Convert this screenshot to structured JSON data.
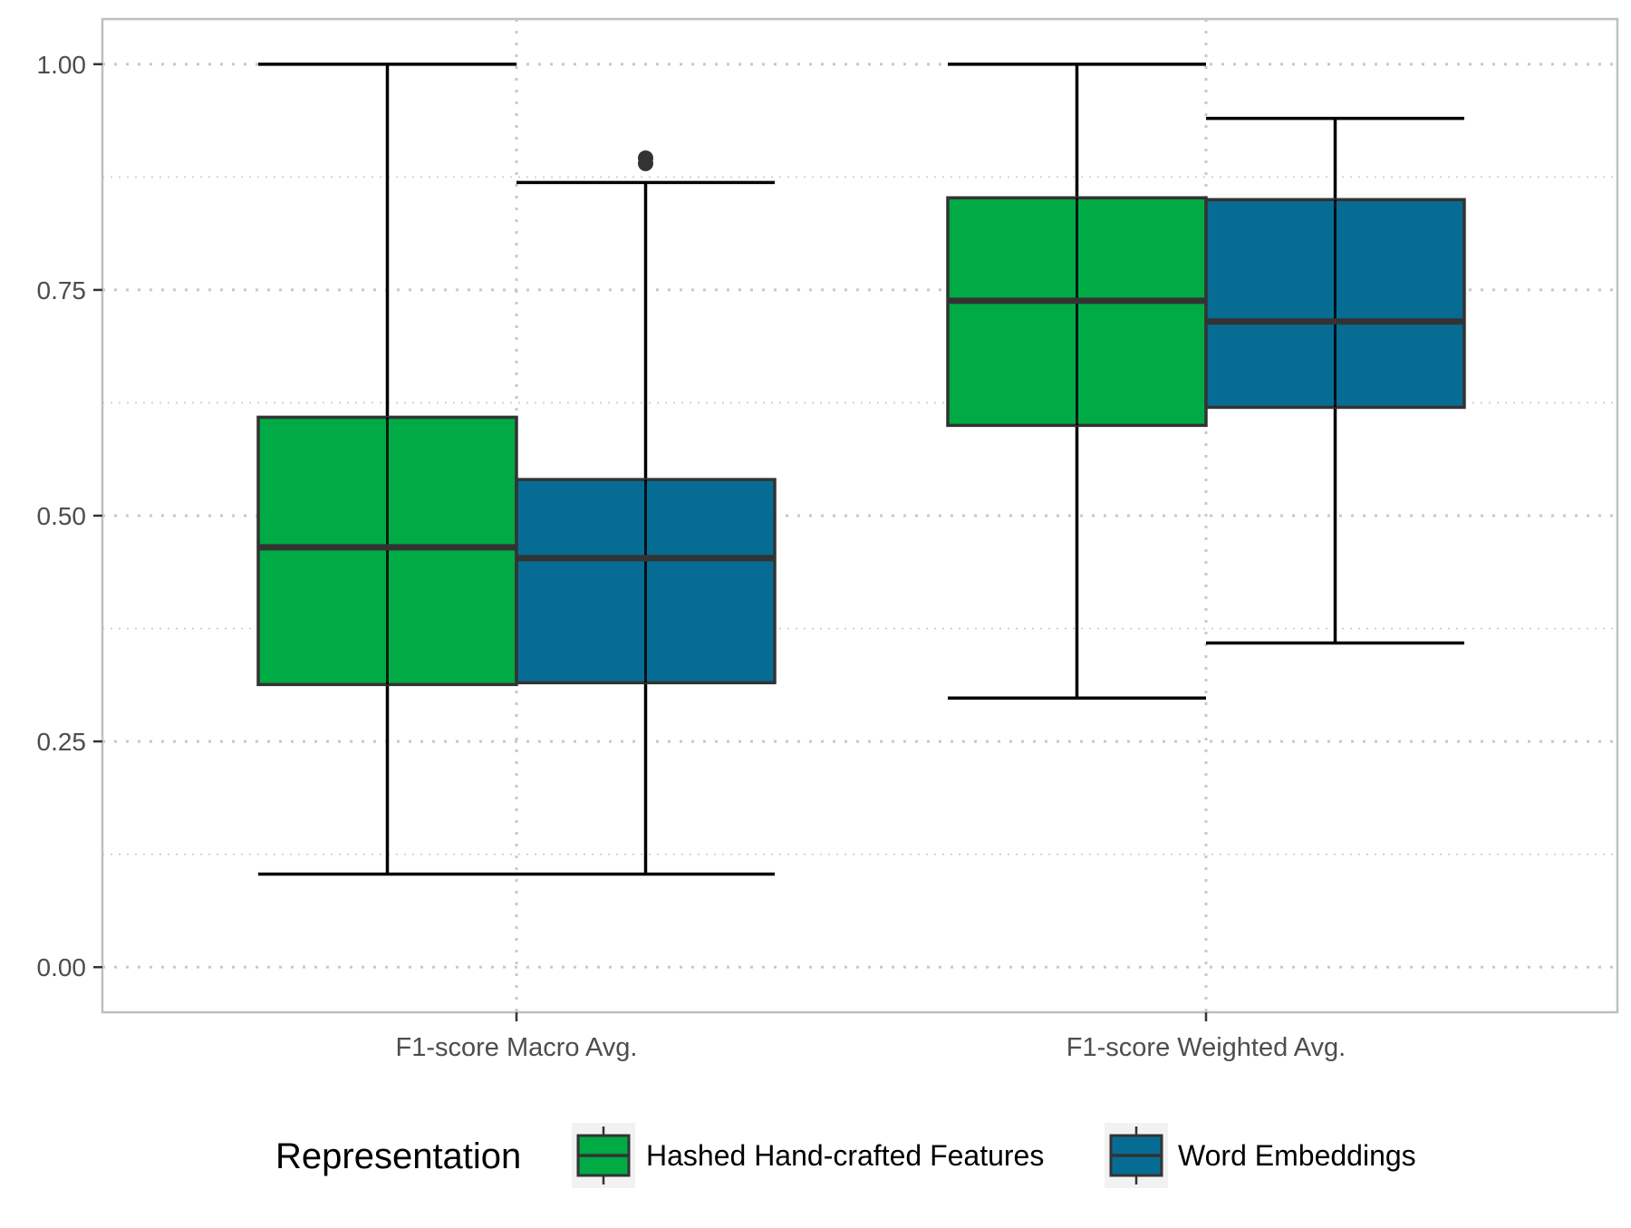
{
  "chart_data": {
    "type": "box",
    "title": "",
    "xlabel": "",
    "ylabel": "",
    "categories": [
      "F1-score Macro Avg.",
      "F1-score Weighted Avg."
    ],
    "ylim": [
      -0.05,
      1.05
    ],
    "yticks": [
      0.0,
      0.25,
      0.5,
      0.75,
      1.0
    ],
    "ytick_labels": [
      "0.00",
      "0.25",
      "0.50",
      "0.75",
      "1.00"
    ],
    "grid": true,
    "legend": {
      "title": "Representation",
      "position": "bottom"
    },
    "series": [
      {
        "name": "Hashed Hand-crafted Features",
        "color": "#00AA44",
        "boxes": [
          {
            "category": "F1-score Macro Avg.",
            "whisker_low": 0.103,
            "q1": 0.313,
            "median": 0.465,
            "q3": 0.609,
            "whisker_high": 1.0,
            "outliers": []
          },
          {
            "category": "F1-score Weighted Avg.",
            "whisker_low": 0.298,
            "q1": 0.6,
            "median": 0.738,
            "q3": 0.852,
            "whisker_high": 1.0,
            "outliers": []
          }
        ]
      },
      {
        "name": "Word Embeddings",
        "color": "#076C94",
        "boxes": [
          {
            "category": "F1-score Macro Avg.",
            "whisker_low": 0.103,
            "q1": 0.315,
            "median": 0.453,
            "q3": 0.54,
            "whisker_high": 0.869,
            "outliers": [
              0.89,
              0.896
            ]
          },
          {
            "category": "F1-score Weighted Avg.",
            "whisker_low": 0.359,
            "q1": 0.62,
            "median": 0.715,
            "q3": 0.85,
            "whisker_high": 0.94,
            "outliers": []
          }
        ]
      }
    ]
  }
}
